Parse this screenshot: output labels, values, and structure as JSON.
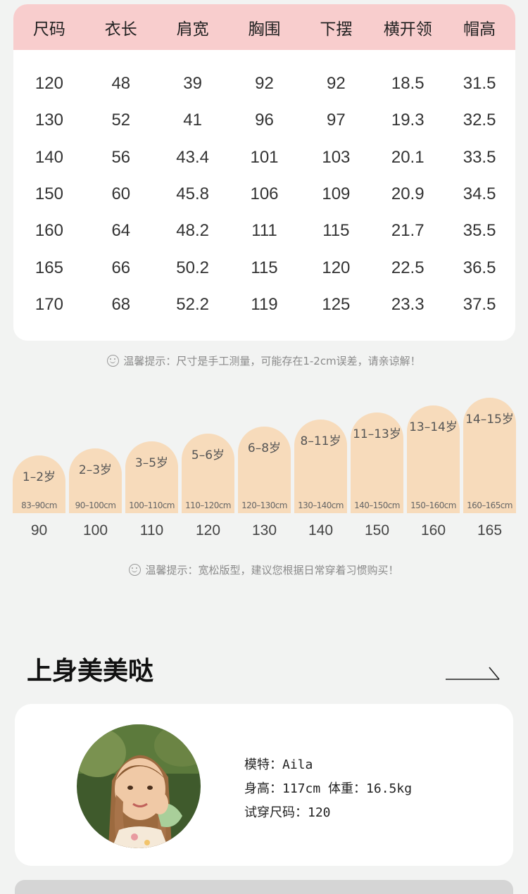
{
  "size_table": {
    "headers": [
      "尺码",
      "衣长",
      "肩宽",
      "胸围",
      "下摆",
      "横开领",
      "帽高"
    ],
    "rows": [
      [
        "120",
        "48",
        "39",
        "92",
        "92",
        "18.5",
        "31.5"
      ],
      [
        "130",
        "52",
        "41",
        "96",
        "97",
        "19.3",
        "32.5"
      ],
      [
        "140",
        "56",
        "43.4",
        "101",
        "103",
        "20.1",
        "33.5"
      ],
      [
        "150",
        "60",
        "45.8",
        "106",
        "109",
        "20.9",
        "34.5"
      ],
      [
        "160",
        "64",
        "48.2",
        "111",
        "115",
        "21.7",
        "35.5"
      ],
      [
        "165",
        "66",
        "50.2",
        "115",
        "120",
        "22.5",
        "36.5"
      ],
      [
        "170",
        "68",
        "52.2",
        "119",
        "125",
        "23.3",
        "37.5"
      ]
    ]
  },
  "tip_measure": "温馨提示：尺寸是手工测量，可能存在1-2cm误差，请亲谅解！",
  "size_guide": [
    {
      "age": "1–2岁",
      "range": "83–90cm",
      "height": "90"
    },
    {
      "age": "2–3岁",
      "range": "90–100cm",
      "height": "100"
    },
    {
      "age": "3–5岁",
      "range": "100–110cm",
      "height": "110"
    },
    {
      "age": "5–6岁",
      "range": "110–120cm",
      "height": "120"
    },
    {
      "age": "6–8岁",
      "range": "120–130cm",
      "height": "130"
    },
    {
      "age": "8–11岁",
      "range": "130–140cm",
      "height": "140"
    },
    {
      "age": "11–13岁",
      "range": "140–150cm",
      "height": "150"
    },
    {
      "age": "13–14岁",
      "range": "150–160cm",
      "height": "160"
    },
    {
      "age": "14–15岁",
      "range": "160–165cm",
      "height": "165"
    }
  ],
  "tip_fit": "温馨提示：宽松版型，建议您根据日常穿着习惯购买！",
  "section_title": "上身美美哒",
  "model": {
    "name_line": "模特：Aila",
    "height_line": "身高：117cm",
    "weight_line": "体重：16.5kg",
    "size_line": "试穿尺码：120"
  },
  "icons": {
    "tip": "smile-icon",
    "more": "arrow-right-icon"
  },
  "colors": {
    "table_header": "#f8cdcd",
    "bar_fill": "#f7dbbb",
    "background": "#f2f3f2"
  }
}
